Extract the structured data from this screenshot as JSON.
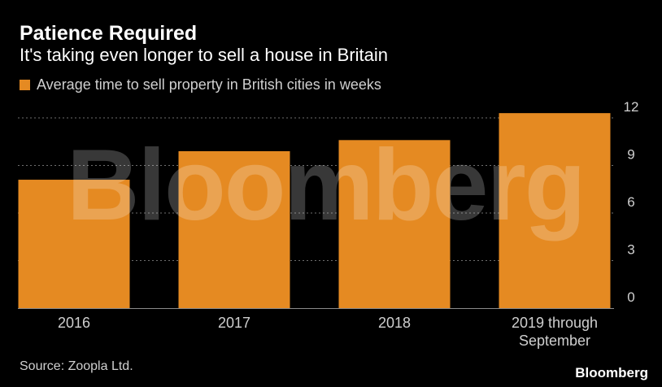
{
  "header": {
    "title": "Patience Required",
    "subtitle": "It's taking even longer to sell a house in Britain"
  },
  "footer": {
    "source": "Source: Zoopla Ltd.",
    "brand": "Bloomberg"
  },
  "watermark": "Bloomberg",
  "colors": {
    "background": "#000000",
    "bar": "#e58a22",
    "gridline": "#6e6e6e",
    "text": "#ffffff",
    "muted_text": "#cfcfcf"
  },
  "chart_data": {
    "type": "bar",
    "title": "Patience Required",
    "subtitle": "It's taking even longer to sell a house in Britain",
    "categories": [
      "2016",
      "2017",
      "2018",
      "2019 through September"
    ],
    "category_lines": [
      [
        "2016"
      ],
      [
        "2017"
      ],
      [
        "2018"
      ],
      [
        "2019 through",
        "September"
      ]
    ],
    "series": [
      {
        "name": "Average time to sell property in British cities in weeks",
        "values": [
          8.1,
          9.9,
          10.6,
          12.3
        ]
      }
    ],
    "xlabel": "",
    "ylabel": "",
    "ylim": [
      0,
      12
    ],
    "yticks": [
      0,
      3,
      6,
      9,
      12
    ],
    "y_axis_side": "right",
    "grid": true,
    "legend_position": "top-left"
  }
}
